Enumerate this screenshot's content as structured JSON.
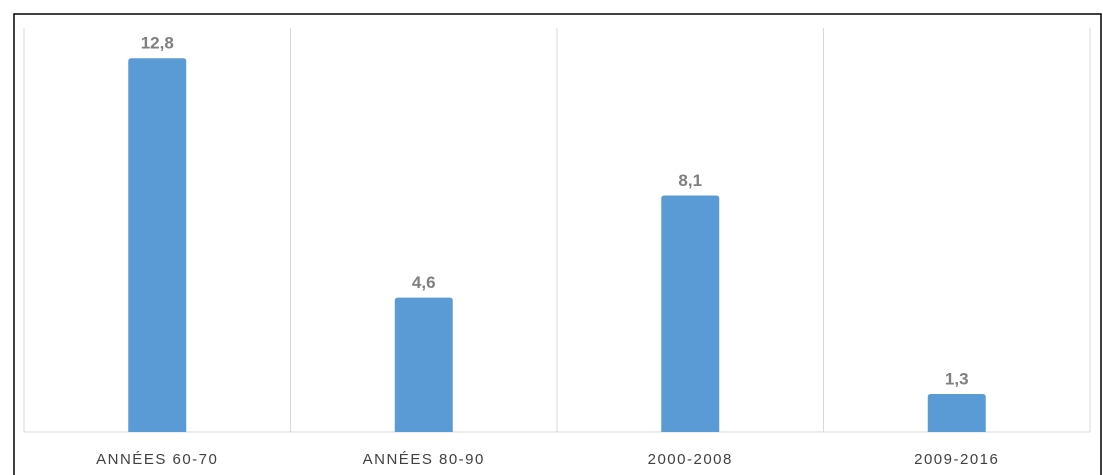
{
  "chart_data": {
    "type": "bar",
    "categories": [
      "ANNÉES 60-70",
      "ANNÉES 80-90",
      "2000-2008",
      "2009-2016"
    ],
    "values": [
      12.8,
      4.6,
      8.1,
      1.3
    ],
    "value_labels": [
      "12,8",
      "4,6",
      "8,1",
      "1,3"
    ],
    "color": "#5b9bd5"
  }
}
